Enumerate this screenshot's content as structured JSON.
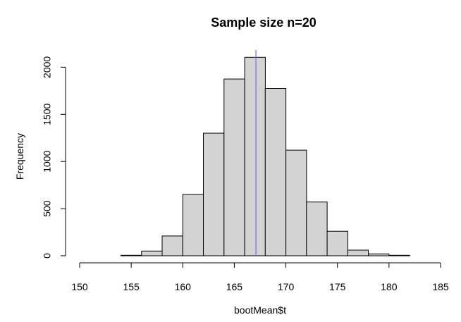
{
  "chart_data": {
    "type": "bar",
    "title": "Sample size n=20",
    "xlabel": "bootMean$t",
    "ylabel": "Frequency",
    "xlim": [
      150,
      185
    ],
    "ylim": [
      0,
      2100
    ],
    "x_ticks": [
      150,
      155,
      160,
      165,
      170,
      175,
      180,
      185
    ],
    "y_ticks": [
      0,
      500,
      1000,
      1500,
      2000
    ],
    "bins": [
      {
        "start": 154,
        "end": 156,
        "count": 5
      },
      {
        "start": 156,
        "end": 158,
        "count": 50
      },
      {
        "start": 158,
        "end": 160,
        "count": 210
      },
      {
        "start": 160,
        "end": 162,
        "count": 650
      },
      {
        "start": 162,
        "end": 164,
        "count": 1300
      },
      {
        "start": 164,
        "end": 166,
        "count": 1875
      },
      {
        "start": 166,
        "end": 168,
        "count": 2105
      },
      {
        "start": 168,
        "end": 170,
        "count": 1775
      },
      {
        "start": 170,
        "end": 172,
        "count": 1120
      },
      {
        "start": 172,
        "end": 174,
        "count": 570
      },
      {
        "start": 174,
        "end": 176,
        "count": 260
      },
      {
        "start": 176,
        "end": 178,
        "count": 60
      },
      {
        "start": 178,
        "end": 180,
        "count": 20
      },
      {
        "start": 180,
        "end": 182,
        "count": 5
      }
    ],
    "reference_line": {
      "x": 167.1,
      "color": "#6a6aff"
    },
    "bar_color": "#d3d3d3",
    "grid": false
  }
}
